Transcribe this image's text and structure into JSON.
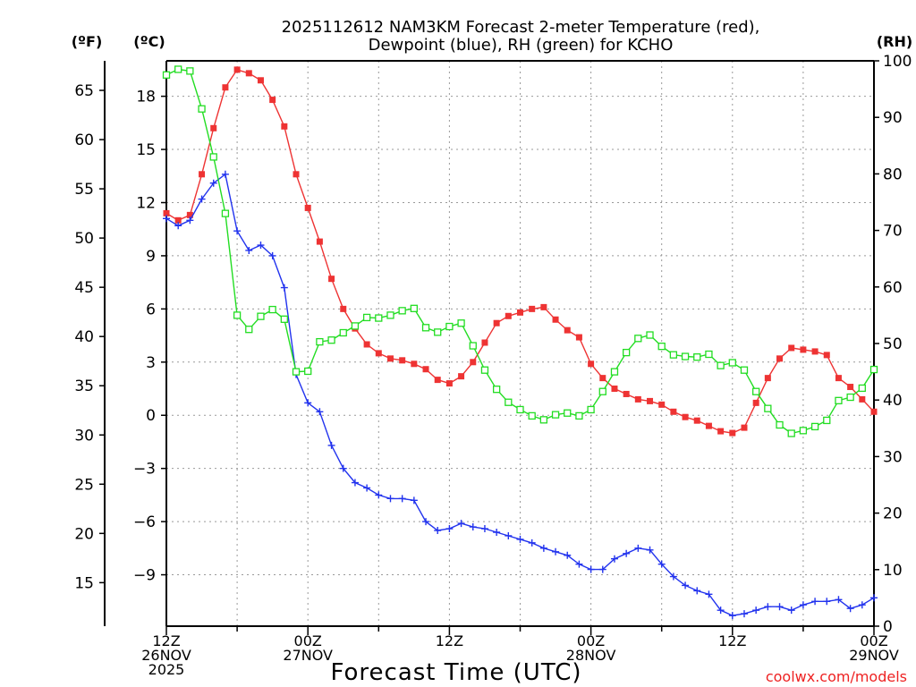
{
  "chart_data": {
    "type": "line",
    "title_lines": [
      "2025112612 NAM3KM Forecast 2-meter Temperature (red),",
      "Dewpoint (blue), RH (green) for KCHO"
    ],
    "xlabel": "Forecast Time (UTC)",
    "credit": "coolwx.com/models",
    "left_unit_f": "(ºF)",
    "left_unit_c": "(ºC)",
    "right_unit": "(RH)",
    "xlim_hours": [
      0,
      60
    ],
    "ylim_c": [
      -11.9,
      20
    ],
    "ylim_rh": [
      0,
      100
    ],
    "x_ticks": [
      {
        "hour": 0,
        "lines": [
          "12Z",
          "26NOV",
          "2025"
        ]
      },
      {
        "hour": 12,
        "lines": [
          "00Z",
          "27NOV"
        ]
      },
      {
        "hour": 24,
        "lines": [
          "12Z"
        ]
      },
      {
        "hour": 36,
        "lines": [
          "00Z",
          "28NOV"
        ]
      },
      {
        "hour": 48,
        "lines": [
          "12Z"
        ]
      },
      {
        "hour": 60,
        "lines": [
          "00Z",
          "29NOV"
        ]
      }
    ],
    "c_ticks": [
      18,
      15,
      12,
      9,
      6,
      3,
      0,
      -3,
      -6,
      -9
    ],
    "f_ticks": [
      65,
      60,
      55,
      50,
      45,
      40,
      35,
      30,
      25,
      20,
      15
    ],
    "rh_ticks": [
      100,
      90,
      80,
      70,
      60,
      50,
      40,
      30,
      20,
      10,
      0
    ],
    "series": [
      {
        "name": "Temperature",
        "axis": "c",
        "color": "#ee3333",
        "marker": "filled-square",
        "x": [
          0,
          1,
          2,
          3,
          4,
          5,
          6,
          7,
          8,
          9,
          10,
          11,
          12,
          13,
          14,
          15,
          16,
          17,
          18,
          19,
          20,
          21,
          22,
          23,
          24,
          25,
          26,
          27,
          28,
          29,
          30,
          31,
          32,
          33,
          34,
          35,
          36,
          37,
          38,
          39,
          40,
          41,
          42,
          43,
          44,
          45,
          46,
          47,
          48,
          49,
          50,
          51,
          52,
          53,
          54,
          55,
          56,
          57,
          58,
          59,
          60
        ],
        "values": [
          11.4,
          11.0,
          11.3,
          13.6,
          16.2,
          18.5,
          19.5,
          19.3,
          18.9,
          17.8,
          16.3,
          13.6,
          11.7,
          9.8,
          7.7,
          6.0,
          4.9,
          4.0,
          3.5,
          3.2,
          3.1,
          2.9,
          2.6,
          2.0,
          1.8,
          2.2,
          3.0,
          4.1,
          5.2,
          5.6,
          5.8,
          6.0,
          6.1,
          5.4,
          4.8,
          4.4,
          2.9,
          2.1,
          1.5,
          1.2,
          0.9,
          0.8,
          0.6,
          0.2,
          -0.1,
          -0.3,
          -0.6,
          -0.9,
          -1.0,
          -0.7,
          0.7,
          2.1,
          3.2,
          3.8,
          3.7,
          3.6,
          3.4,
          2.1,
          1.6,
          0.9,
          0.2
        ]
      },
      {
        "name": "Dewpoint",
        "axis": "c",
        "color": "#2233ee",
        "marker": "plus",
        "x": [
          0,
          1,
          2,
          3,
          4,
          5,
          6,
          7,
          8,
          9,
          10,
          11,
          12,
          13,
          14,
          15,
          16,
          17,
          18,
          19,
          20,
          21,
          22,
          23,
          24,
          25,
          26,
          27,
          28,
          29,
          30,
          31,
          32,
          33,
          34,
          35,
          36,
          37,
          38,
          39,
          40,
          41,
          42,
          43,
          44,
          45,
          46,
          47,
          48,
          49,
          50,
          51,
          52,
          53,
          54,
          55,
          56,
          57,
          58,
          59,
          60
        ],
        "values": [
          11.1,
          10.7,
          11.0,
          12.2,
          13.1,
          13.6,
          10.4,
          9.3,
          9.6,
          9.0,
          7.2,
          2.3,
          0.7,
          0.2,
          -1.7,
          -3.0,
          -3.8,
          -4.1,
          -4.5,
          -4.7,
          -4.7,
          -4.8,
          -6.0,
          -6.5,
          -6.4,
          -6.1,
          -6.3,
          -6.4,
          -6.6,
          -6.8,
          -7.0,
          -7.2,
          -7.5,
          -7.7,
          -7.9,
          -8.4,
          -8.7,
          -8.7,
          -8.1,
          -7.8,
          -7.5,
          -7.6,
          -8.4,
          -9.1,
          -9.6,
          -9.9,
          -10.1,
          -11.0,
          -11.3,
          -11.2,
          -11.0,
          -10.8,
          -10.8,
          -11.0,
          -10.7,
          -10.5,
          -10.5,
          -10.4,
          -10.9,
          -10.7,
          -10.3
        ]
      },
      {
        "name": "RH",
        "axis": "rh",
        "color": "#22dd22",
        "marker": "open-square",
        "x": [
          0,
          1,
          2,
          3,
          4,
          5,
          6,
          7,
          8,
          9,
          10,
          11,
          12,
          13,
          14,
          15,
          16,
          17,
          18,
          19,
          20,
          21,
          22,
          23,
          24,
          25,
          26,
          27,
          28,
          29,
          30,
          31,
          32,
          33,
          34,
          35,
          36,
          37,
          38,
          39,
          40,
          41,
          42,
          43,
          44,
          45,
          46,
          47,
          48,
          49,
          50,
          51,
          52,
          53,
          54,
          55,
          56,
          57,
          58,
          59,
          60
        ],
        "values": [
          97.5,
          98.5,
          98.2,
          91.5,
          83.0,
          73.0,
          55.0,
          52.5,
          54.8,
          56.0,
          54.3,
          45.0,
          45.1,
          50.3,
          50.6,
          51.9,
          53.1,
          54.6,
          54.5,
          55.0,
          55.8,
          56.2,
          52.8,
          52.0,
          53.0,
          53.6,
          49.6,
          45.3,
          41.9,
          39.6,
          38.3,
          37.2,
          36.5,
          37.4,
          37.7,
          37.2,
          38.3,
          41.5,
          45.0,
          48.4,
          50.9,
          51.5,
          49.5,
          48.0,
          47.7,
          47.6,
          48.1,
          46.1,
          46.6,
          45.3,
          41.5,
          38.5,
          35.6,
          34.1,
          34.6,
          35.3,
          36.4,
          39.9,
          40.5,
          42.1,
          45.4
        ]
      }
    ]
  }
}
